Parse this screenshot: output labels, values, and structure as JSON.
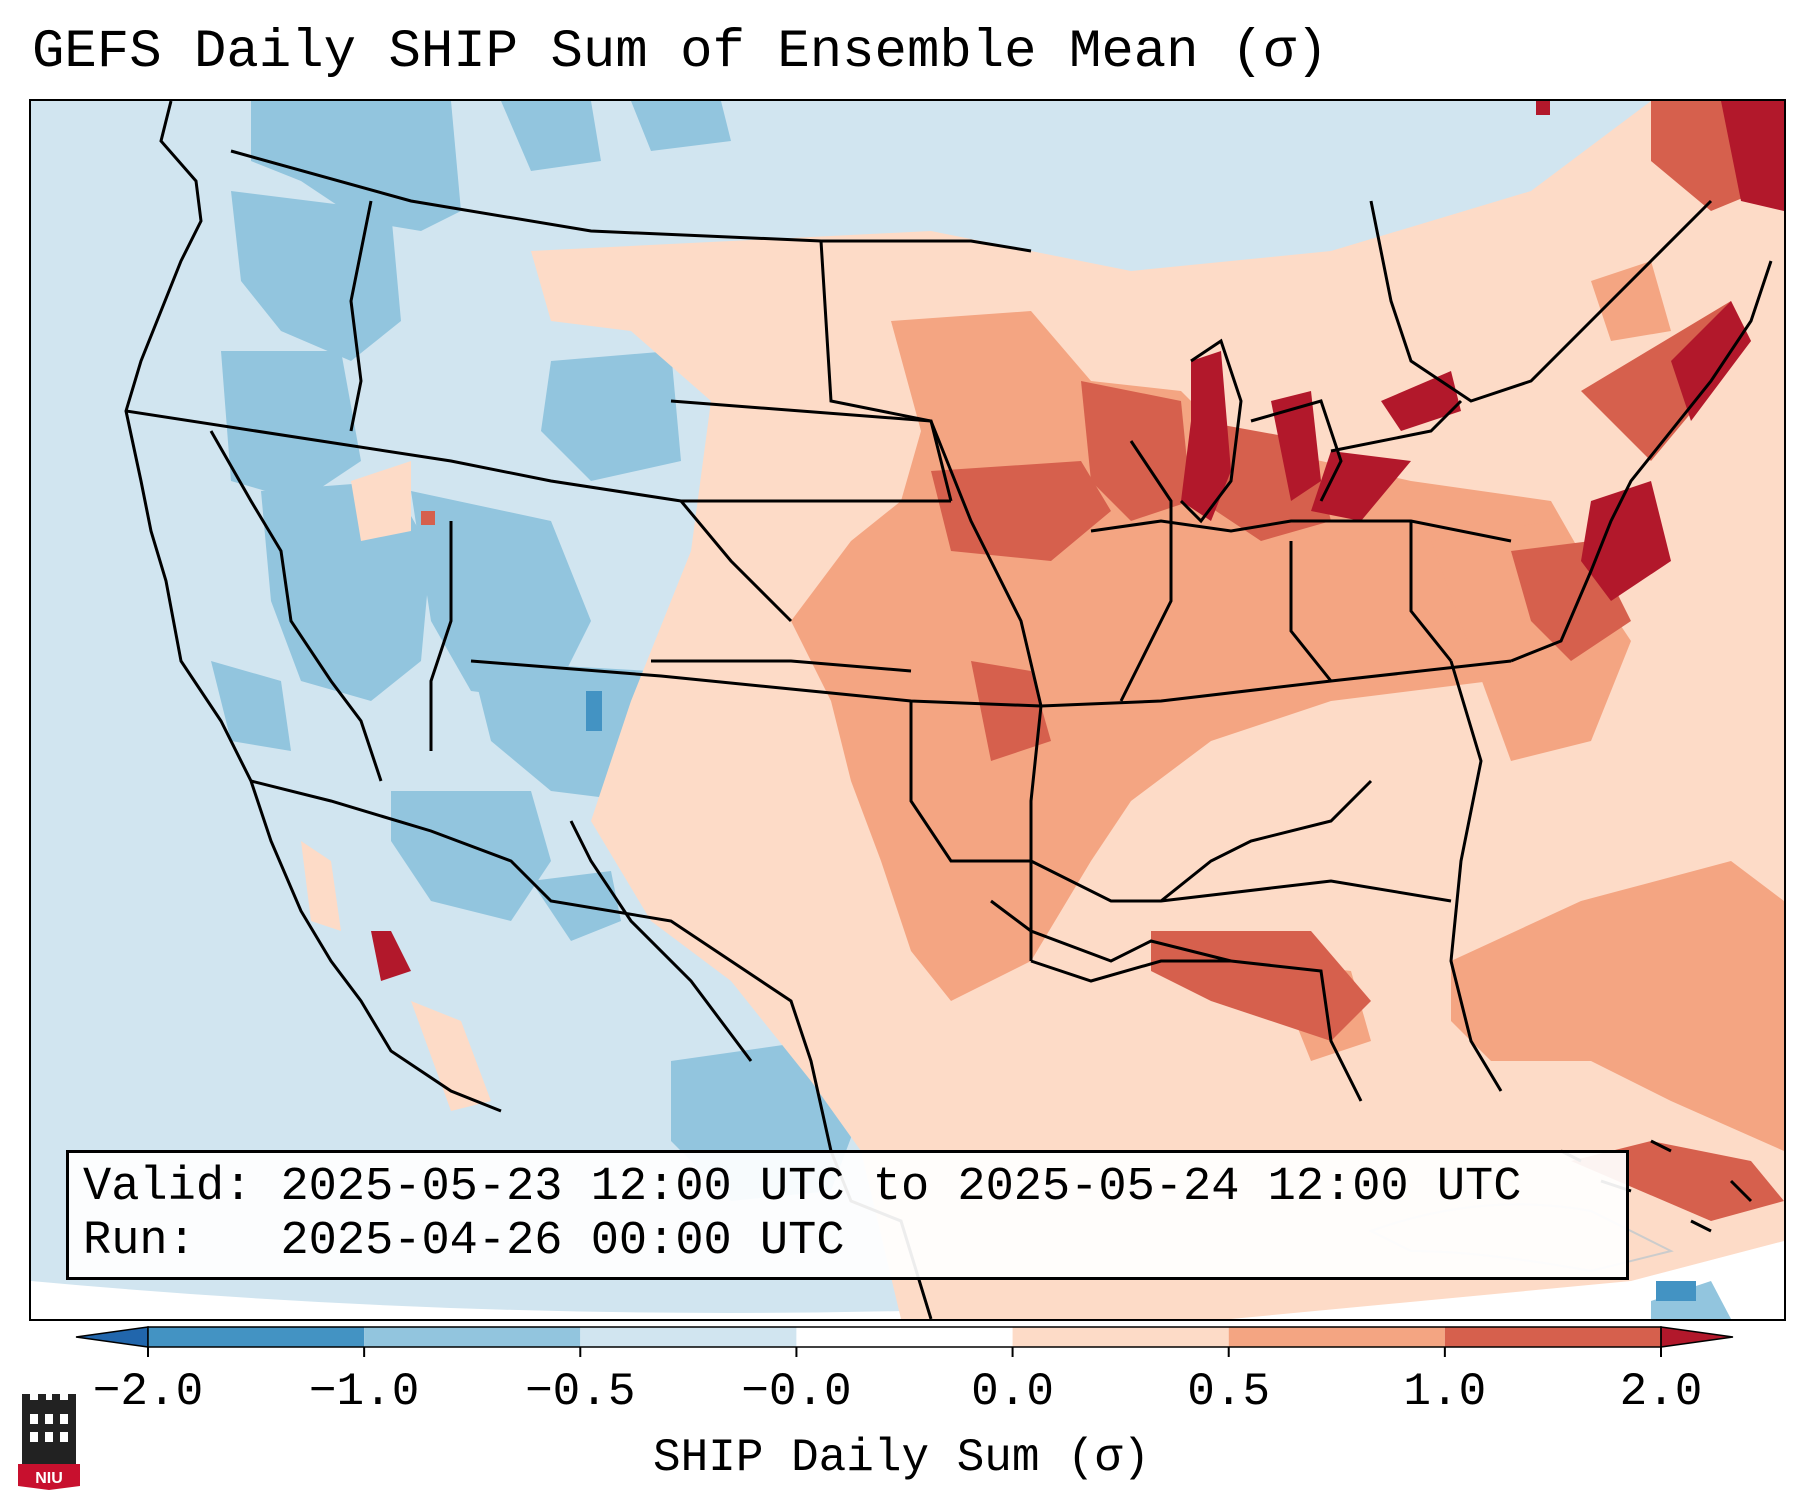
{
  "title": "GEFS Daily SHIP Sum of Ensemble Mean (σ)",
  "info": {
    "valid_label": "Valid:",
    "valid_value": "2025-05-23 12:00 UTC to 2025-05-24 12:00 UTC",
    "run_label": "Run:",
    "run_value": "2025-04-26 00:00 UTC"
  },
  "colorbar": {
    "label": "SHIP Daily Sum (σ)",
    "ticks": [
      "−2.0",
      "−1.0",
      "−0.5",
      "−0.0",
      "0.0",
      "0.5",
      "1.0",
      "2.0"
    ],
    "bins": [
      {
        "from": "< -2.0",
        "color": "#2166ac"
      },
      {
        "from": "-2.0 to -1.0",
        "color": "#4393c3"
      },
      {
        "from": "-1.0 to -0.5",
        "color": "#92c5de"
      },
      {
        "from": "-0.5 to -0.0",
        "color": "#d1e5f0"
      },
      {
        "from": "-0.0 to 0.0",
        "color": "#ffffff"
      },
      {
        "from": "0.0 to 0.5",
        "color": "#fddbc7"
      },
      {
        "from": "0.5 to 1.0",
        "color": "#f4a582"
      },
      {
        "from": "1.0 to 2.0",
        "color": "#d6604d"
      },
      {
        "from": "> 2.0",
        "color": "#b2182b"
      }
    ]
  },
  "logo": {
    "text": "NIU",
    "icon": "niu-castle-logo"
  }
}
